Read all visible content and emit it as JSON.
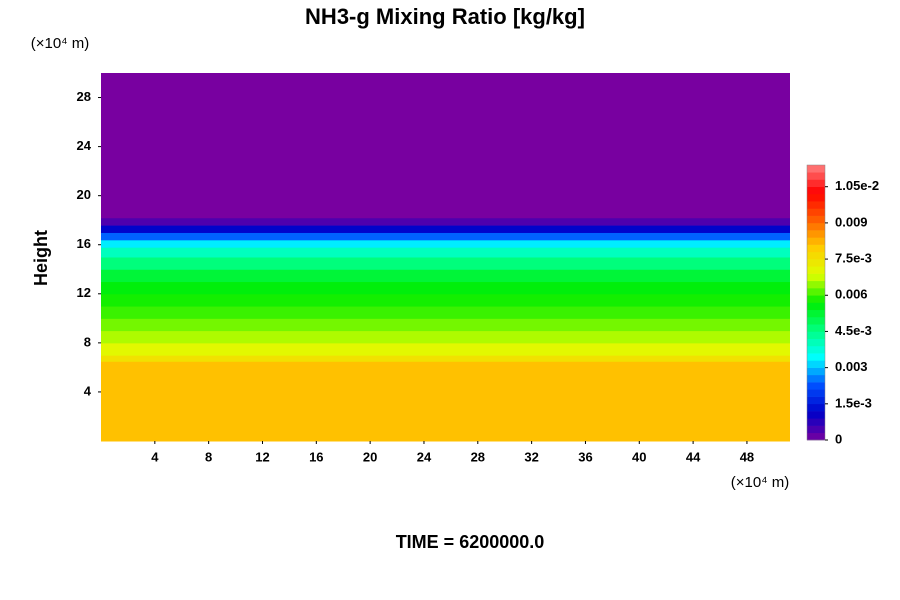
{
  "chart_data": {
    "type": "contour",
    "title": "NH3-g Mixing Ratio [kg/kg]",
    "y_label": "Height",
    "y_unit": "(×10⁴ m)",
    "x_unit": "(×10⁴ m)",
    "footer": "TIME = 6200000.0",
    "xlim": [
      0,
      51.2
    ],
    "ylim": [
      0,
      30
    ],
    "xticks": [
      4,
      8,
      12,
      16,
      20,
      24,
      28,
      32,
      36,
      40,
      44,
      48
    ],
    "yticks": [
      4,
      8,
      12,
      16,
      20,
      24,
      28
    ],
    "ybins": [
      0,
      6.5,
      7,
      8,
      9,
      10,
      11,
      12,
      13,
      14,
      15,
      15.8,
      16.4,
      17,
      17.6,
      18.2,
      30
    ],
    "values": [
      0.0081,
      0.0075,
      0.007,
      0.0066,
      0.0063,
      0.006,
      0.0058,
      0.0056,
      0.0052,
      0.0046,
      0.004,
      0.0033,
      0.0024,
      0.0012,
      0.0004,
      0
    ],
    "clim": [
      0,
      0.0114
    ],
    "cticks": [
      0,
      {
        "value": 0.0015,
        "label": "1.5e-3"
      },
      0.003,
      {
        "value": 0.0045,
        "label": "4.5e-3"
      },
      0.006,
      {
        "value": 0.0075,
        "label": "7.5e-3"
      },
      0.009,
      {
        "value": 0.0105,
        "label": "1.05e-2"
      }
    ],
    "colormap": [
      "#7800a0",
      "#0000c8",
      "#0050ff",
      "#00ffff",
      "#00ff80",
      "#00ee00",
      "#ddff00",
      "#ffcc00",
      "#ff6000",
      "#ff0000",
      "#ff8080"
    ]
  }
}
